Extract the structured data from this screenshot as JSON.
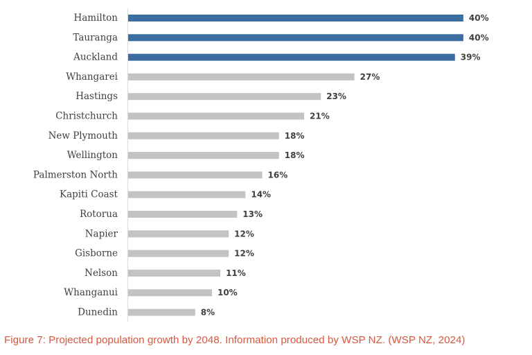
{
  "chart_data": {
    "type": "bar",
    "orientation": "horizontal",
    "categories": [
      "Hamilton",
      "Tauranga",
      "Auckland",
      "Whangarei",
      "Hastings",
      "Christchurch",
      "New Plymouth",
      "Wellington",
      "Palmerston North",
      "Kapiti Coast",
      "Rotorua",
      "Napier",
      "Gisborne",
      "Nelson",
      "Whanganui",
      "Dunedin"
    ],
    "values": [
      40,
      40,
      39,
      27,
      23,
      21,
      18,
      18,
      16,
      14,
      13,
      12,
      12,
      11,
      10,
      8
    ],
    "value_labels": [
      "40%",
      "40%",
      "39%",
      "27%",
      "23%",
      "21%",
      "18%",
      "18%",
      "16%",
      "14%",
      "13%",
      "12%",
      "12%",
      "11%",
      "10%",
      "8%"
    ],
    "highlighted_categories": [
      "Hamilton",
      "Tauranga",
      "Auckland"
    ],
    "title": "",
    "xlabel": "",
    "ylabel": "",
    "xlim": [
      0,
      41
    ],
    "grid": false,
    "legend": "none",
    "colors": {
      "highlight": "#3b6da0",
      "default": "#c3c3c3",
      "label_text": "#404040"
    }
  },
  "caption": "Figure 7: Projected population growth by 2048. Information produced by WSP NZ. (WSP NZ, 2024)",
  "caption_color": "#d9573f"
}
